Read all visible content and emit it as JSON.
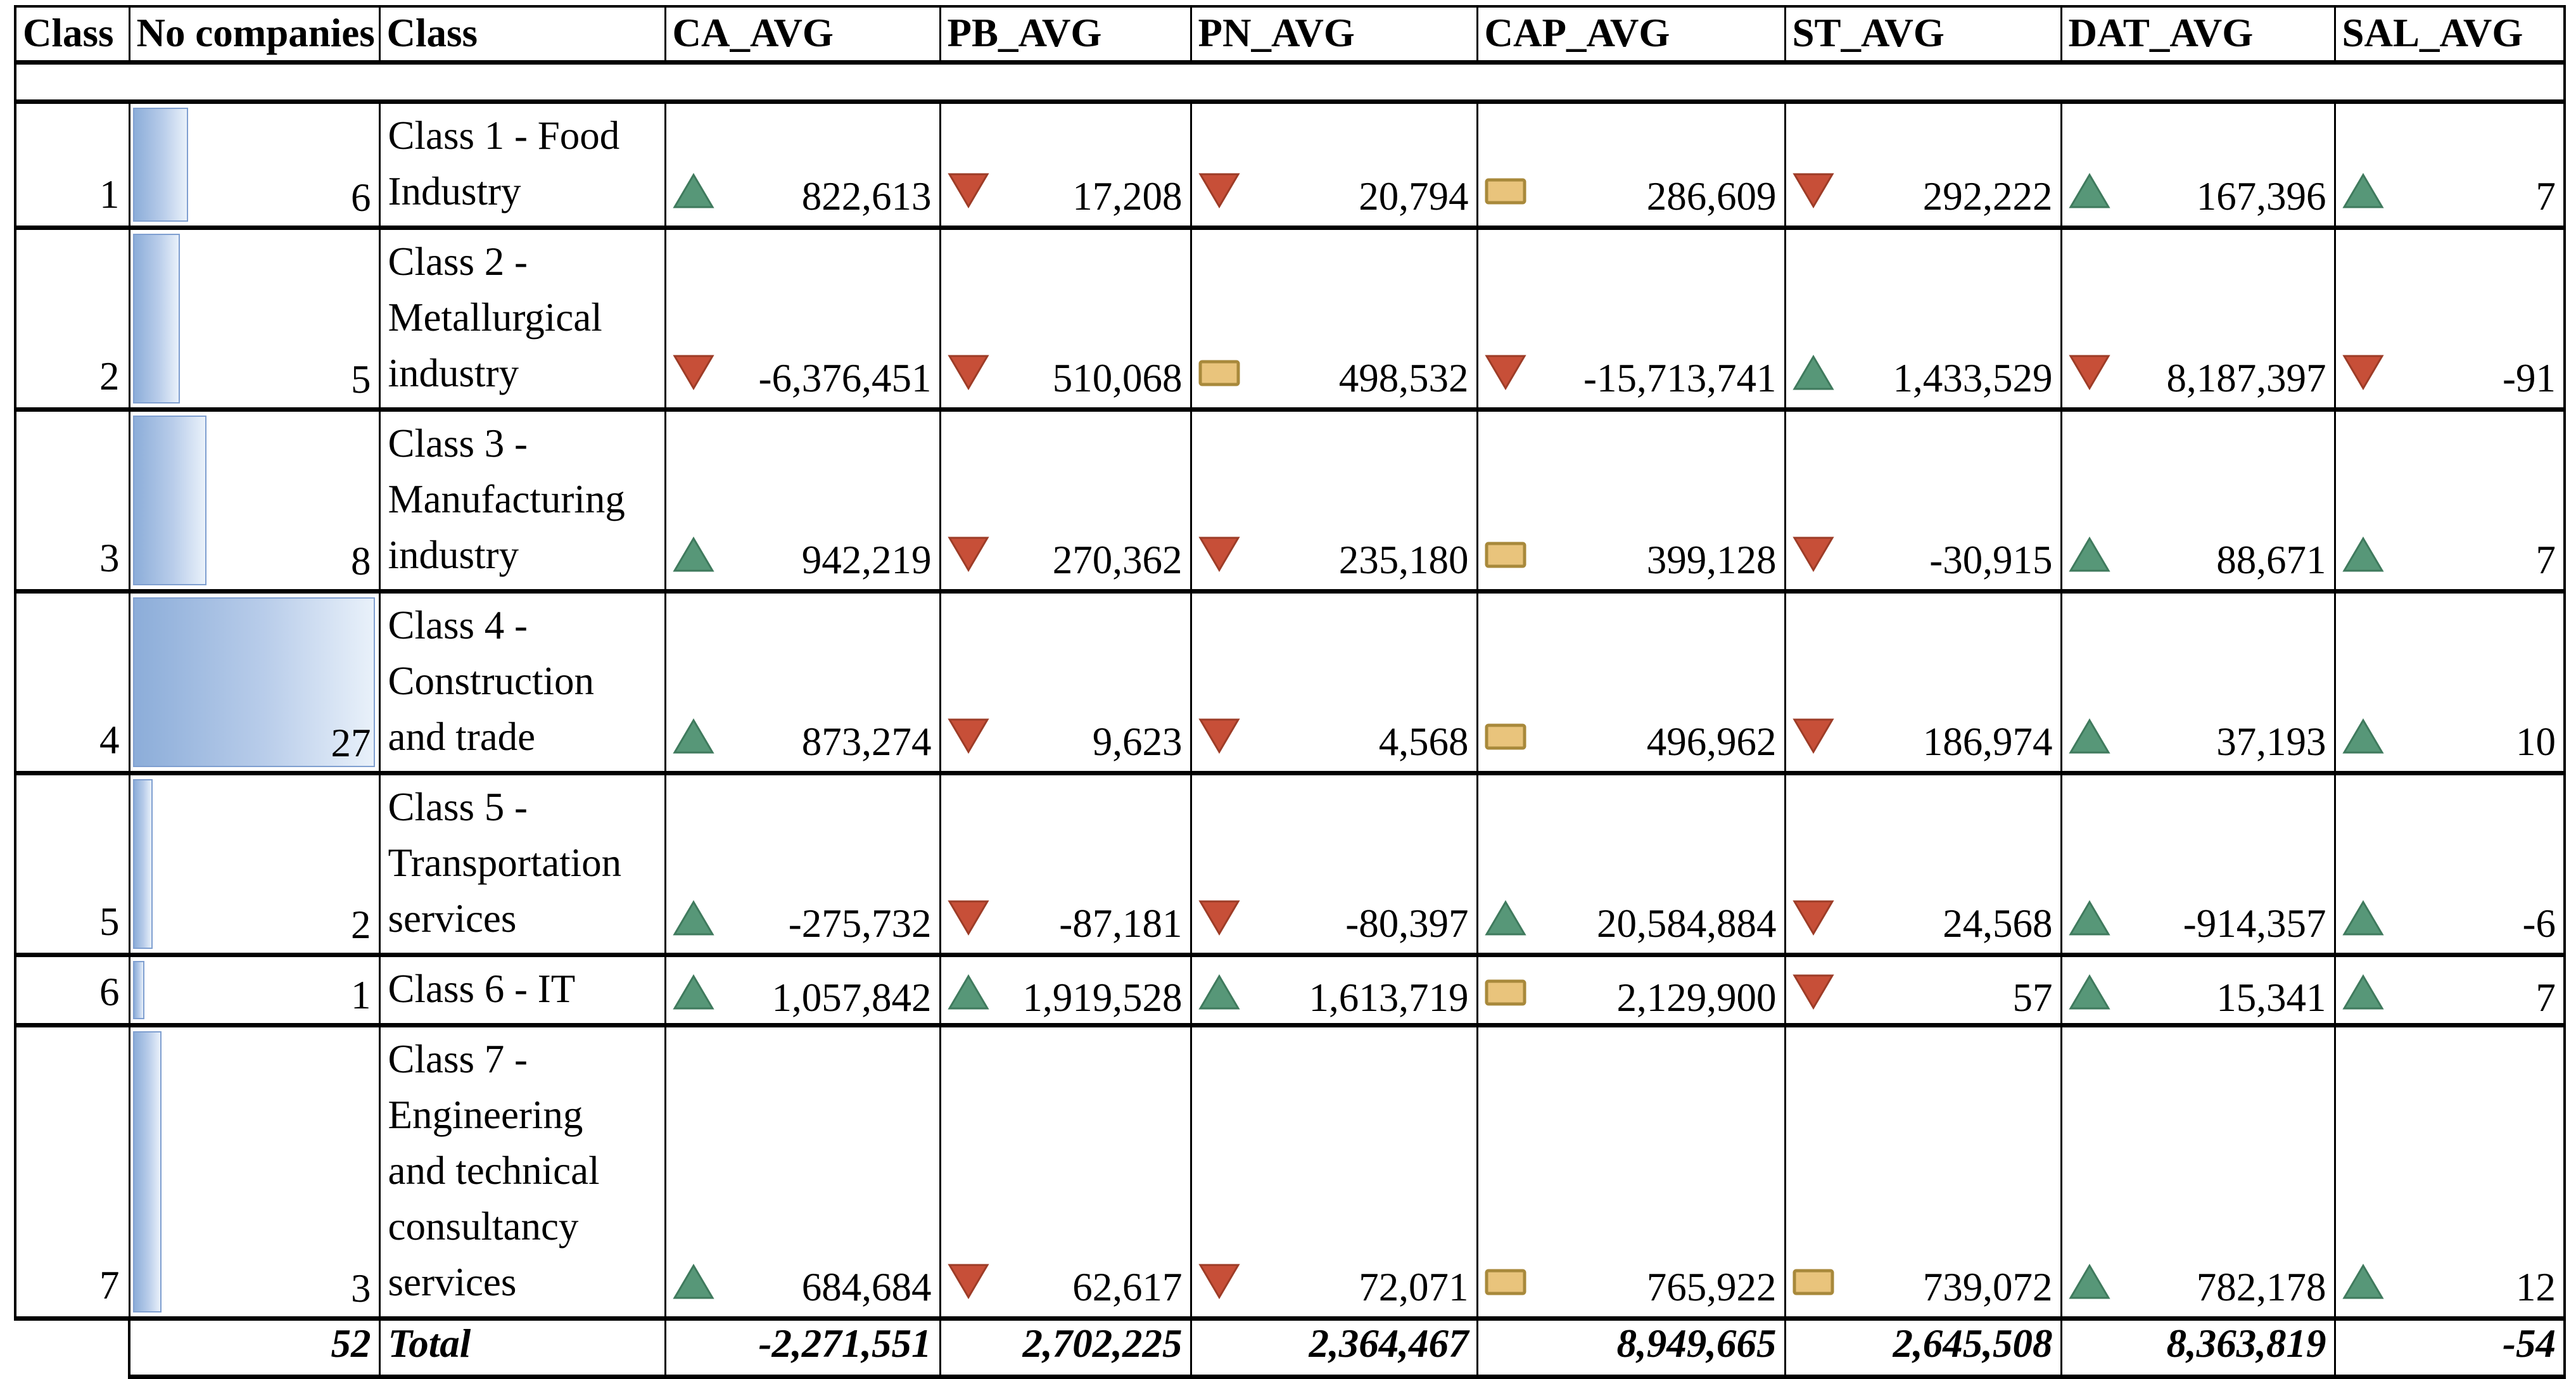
{
  "table": {
    "headers": [
      "Class",
      "No companies",
      "Class",
      "CA_AVG",
      "PB_AVG",
      "PN_AVG",
      "CAP_AVG",
      "ST_AVG",
      "DAT_AVG",
      "SAL_AVG"
    ],
    "bar_max_companies": 27,
    "rows": [
      {
        "class_no": "1",
        "companies": "6",
        "label": "Class 1 - Food\nIndustry",
        "values": [
          {
            "icon": "up",
            "text": "822,613"
          },
          {
            "icon": "down",
            "text": "17,208"
          },
          {
            "icon": "down",
            "text": "20,794"
          },
          {
            "icon": "neutral",
            "text": "286,609"
          },
          {
            "icon": "down",
            "text": "292,222"
          },
          {
            "icon": "up",
            "text": "167,396"
          },
          {
            "icon": "up",
            "text": "7"
          }
        ]
      },
      {
        "class_no": "2",
        "companies": "5",
        "label": "Class 2 -\nMetallurgical\nindustry",
        "values": [
          {
            "icon": "down",
            "text": "-6,376,451"
          },
          {
            "icon": "down",
            "text": "510,068"
          },
          {
            "icon": "neutral",
            "text": "498,532"
          },
          {
            "icon": "down",
            "text": "-15,713,741"
          },
          {
            "icon": "up",
            "text": "1,433,529"
          },
          {
            "icon": "down",
            "text": "8,187,397"
          },
          {
            "icon": "down",
            "text": "-91"
          }
        ]
      },
      {
        "class_no": "3",
        "companies": "8",
        "label": "Class 3 -\nManufacturing\nindustry",
        "values": [
          {
            "icon": "up",
            "text": "942,219"
          },
          {
            "icon": "down",
            "text": "270,362"
          },
          {
            "icon": "down",
            "text": "235,180"
          },
          {
            "icon": "neutral",
            "text": "399,128"
          },
          {
            "icon": "down",
            "text": "-30,915"
          },
          {
            "icon": "up",
            "text": "88,671"
          },
          {
            "icon": "up",
            "text": "7"
          }
        ]
      },
      {
        "class_no": "4",
        "companies": "27",
        "label": "Class 4 -\nConstruction\nand trade",
        "values": [
          {
            "icon": "up",
            "text": "873,274"
          },
          {
            "icon": "down",
            "text": "9,623"
          },
          {
            "icon": "down",
            "text": "4,568"
          },
          {
            "icon": "neutral",
            "text": "496,962"
          },
          {
            "icon": "down",
            "text": "186,974"
          },
          {
            "icon": "up",
            "text": "37,193"
          },
          {
            "icon": "up",
            "text": "10"
          }
        ]
      },
      {
        "class_no": "5",
        "companies": "2",
        "label": "Class 5 -\nTransportation\nservices",
        "values": [
          {
            "icon": "up",
            "text": "-275,732"
          },
          {
            "icon": "down",
            "text": "-87,181"
          },
          {
            "icon": "down",
            "text": "-80,397"
          },
          {
            "icon": "up",
            "text": "20,584,884"
          },
          {
            "icon": "down",
            "text": "24,568"
          },
          {
            "icon": "up",
            "text": "-914,357"
          },
          {
            "icon": "up",
            "text": "-6"
          }
        ]
      },
      {
        "class_no": "6",
        "companies": "1",
        "label": "Class 6 - IT",
        "values": [
          {
            "icon": "up",
            "text": "1,057,842"
          },
          {
            "icon": "up",
            "text": "1,919,528"
          },
          {
            "icon": "up",
            "text": "1,613,719"
          },
          {
            "icon": "neutral",
            "text": "2,129,900"
          },
          {
            "icon": "down",
            "text": "57"
          },
          {
            "icon": "up",
            "text": "15,341"
          },
          {
            "icon": "up",
            "text": "7"
          }
        ]
      },
      {
        "class_no": "7",
        "companies": "3",
        "label": "Class 7 -\nEngineering\nand technical\nconsultancy\nservices",
        "values": [
          {
            "icon": "up",
            "text": "684,684"
          },
          {
            "icon": "down",
            "text": "62,617"
          },
          {
            "icon": "down",
            "text": "72,071"
          },
          {
            "icon": "neutral",
            "text": "765,922"
          },
          {
            "icon": "neutral",
            "text": "739,072"
          },
          {
            "icon": "up",
            "text": "782,178"
          },
          {
            "icon": "up",
            "text": "12"
          }
        ]
      }
    ],
    "total": {
      "companies": "52",
      "label": "Total",
      "values": [
        "-2,271,551",
        "2,702,225",
        "2,364,467",
        "8,949,665",
        "2,645,508",
        "8,363,819",
        "-54"
      ]
    },
    "colors": {
      "trend_up": "#579778",
      "trend_up_stroke": "#3f7a5d",
      "trend_down": "#c74f38",
      "trend_down_stroke": "#9d3c27",
      "trend_neutral": "#e9c47c",
      "trend_neutral_stroke": "#a8893b",
      "bar_fill_start": "#8cadd9",
      "bar_fill_end": "#e9f1fa",
      "bar_border": "#7f9fd0"
    }
  }
}
